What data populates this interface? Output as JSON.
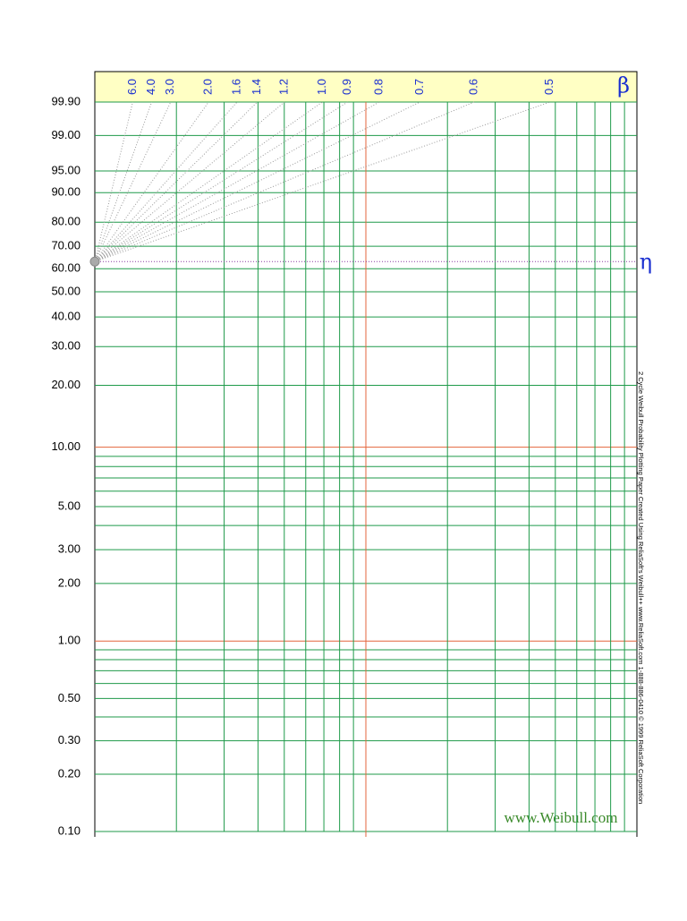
{
  "chart_data": {
    "type": "probability-paper",
    "ylim": [
      0.1,
      99.9
    ],
    "yticks": [
      {
        "value": 99.9,
        "label": "99.90"
      },
      {
        "value": 99,
        "label": "99.00"
      },
      {
        "value": 95,
        "label": "95.00"
      },
      {
        "value": 90,
        "label": "90.00"
      },
      {
        "value": 80,
        "label": "80.00"
      },
      {
        "value": 70,
        "label": "70.00"
      },
      {
        "value": 60,
        "label": "60.00"
      },
      {
        "value": 50,
        "label": "50.00"
      },
      {
        "value": 40,
        "label": "40.00"
      },
      {
        "value": 30,
        "label": "30.00"
      },
      {
        "value": 20,
        "label": "20.00"
      },
      {
        "value": 10,
        "label": "10.00"
      },
      {
        "value": 5,
        "label": "5.00"
      },
      {
        "value": 3,
        "label": "3.00"
      },
      {
        "value": 2,
        "label": "2.00"
      },
      {
        "value": 1,
        "label": "1.00"
      },
      {
        "value": 0.5,
        "label": "0.50"
      },
      {
        "value": 0.3,
        "label": "0.30"
      },
      {
        "value": 0.2,
        "label": "0.20"
      },
      {
        "value": 0.1,
        "label": "0.10"
      }
    ],
    "minor_yticks": [
      9,
      8,
      7,
      6,
      4,
      0.9,
      0.8,
      0.7,
      0.6,
      0.4
    ],
    "xlim": [
      1,
      100
    ],
    "log_x": true,
    "xticks": [
      2,
      3,
      4,
      5,
      6,
      7,
      8,
      9,
      10,
      20,
      30,
      40,
      50,
      60,
      70,
      80,
      90
    ],
    "beta_symbol": "β",
    "beta_ticks": [
      {
        "value": 6,
        "label": "6.0"
      },
      {
        "value": 4,
        "label": "4.0"
      },
      {
        "value": 3,
        "label": "3.0"
      },
      {
        "value": 2,
        "label": "2.0"
      },
      {
        "value": 1.6,
        "label": "1.6"
      },
      {
        "value": 1.4,
        "label": "1.4"
      },
      {
        "value": 1.2,
        "label": "1.2"
      },
      {
        "value": 1,
        "label": "1.0"
      },
      {
        "value": 0.9,
        "label": "0.9"
      },
      {
        "value": 0.8,
        "label": "0.8"
      },
      {
        "value": 0.7,
        "label": "0.7"
      },
      {
        "value": 0.6,
        "label": "0.6"
      },
      {
        "value": 0.5,
        "label": "0.5"
      }
    ],
    "eta_symbol": "η",
    "eta_value": 63.2,
    "grid_color": "#1f9a4a",
    "decade_color": "#e3643c",
    "label_color": "#1a2fd0",
    "side_note": "2 Cycle Weibull Probability Plotting Paper     Created Using ReliaSoft's Weibull++     www.ReliaSoft.com     1-888-886-0410     © 1999 ReliaSoft Corporation",
    "watermark": "www.Weibull.com"
  }
}
